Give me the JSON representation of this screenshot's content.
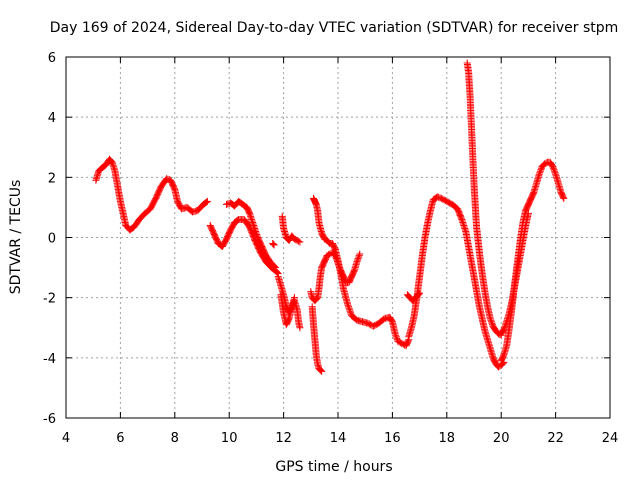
{
  "chart_data": {
    "type": "scatter",
    "title": "Day 169 of 2024, Sidereal Day-to-day VTEC variation (SDTVAR) for receiver stpm",
    "xlabel": "GPS time / hours",
    "ylabel": "SDTVAR / TECUs",
    "xlim": [
      4,
      24
    ],
    "ylim": [
      -6,
      6
    ],
    "xticks": [
      "4",
      "6",
      "8",
      "10",
      "12",
      "14",
      "16",
      "18",
      "20",
      "22",
      "24"
    ],
    "yticks": [
      "-6",
      "-4",
      "-2",
      "0",
      "2",
      "4",
      "6"
    ],
    "grid": true,
    "marker": "+",
    "color": "#ff0000",
    "series": [
      {
        "name": "seg1",
        "x": [
          5.1,
          5.2,
          5.3,
          5.45,
          5.6,
          5.7,
          5.8,
          5.9,
          6.0,
          6.1,
          6.2,
          6.35,
          6.5,
          6.7,
          6.9,
          7.1,
          7.3,
          7.5,
          7.7,
          7.85,
          8.0,
          8.1,
          8.25,
          8.45,
          8.65,
          8.85,
          9.05,
          9.2
        ],
        "y": [
          1.9,
          2.2,
          2.3,
          2.4,
          2.6,
          2.5,
          2.2,
          1.7,
          1.2,
          0.8,
          0.4,
          0.25,
          0.35,
          0.6,
          0.8,
          0.95,
          1.3,
          1.7,
          1.95,
          1.9,
          1.6,
          1.2,
          0.95,
          1.0,
          0.85,
          0.9,
          1.1,
          1.2
        ]
      },
      {
        "name": "seg2",
        "x": [
          9.3,
          9.45,
          9.6,
          9.75,
          9.9,
          10.05,
          10.2,
          10.35,
          10.55,
          10.75,
          10.95,
          11.15,
          11.35,
          11.55,
          11.7,
          11.8
        ],
        "y": [
          0.4,
          0.1,
          -0.2,
          -0.3,
          -0.05,
          0.25,
          0.5,
          0.6,
          0.6,
          0.35,
          -0.1,
          -0.5,
          -0.8,
          -1.0,
          -1.1,
          -1.2
        ]
      },
      {
        "name": "seg3",
        "x": [
          9.9,
          10.05,
          10.2,
          10.35,
          10.5,
          10.65,
          10.75,
          10.9,
          11.05,
          11.2,
          11.35,
          11.5,
          11.6,
          11.7
        ],
        "y": [
          1.1,
          1.15,
          1.05,
          1.2,
          1.1,
          1.0,
          0.8,
          0.4,
          0.0,
          -0.3,
          -0.6,
          -0.8,
          -0.9,
          -1.0
        ]
      },
      {
        "name": "seg4",
        "x": [
          11.8,
          11.9,
          12.0,
          12.1,
          12.2,
          12.3,
          12.4,
          12.5,
          12.55,
          12.6
        ],
        "y": [
          -1.3,
          -1.6,
          -1.9,
          -2.3,
          -2.5,
          -2.3,
          -2.1,
          -2.4,
          -2.8,
          -3.0
        ]
      },
      {
        "name": "seg5",
        "x": [
          11.9,
          12.0,
          12.1,
          12.2,
          12.3,
          12.4
        ],
        "y": [
          -1.9,
          -2.5,
          -2.9,
          -2.7,
          -2.3,
          -2.0
        ]
      },
      {
        "name": "seg6",
        "x": [
          11.95,
          12.0,
          12.1,
          12.2,
          12.3,
          12.4,
          12.5,
          12.6
        ],
        "y": [
          0.7,
          0.3,
          0.0,
          -0.1,
          0.05,
          -0.05,
          -0.1,
          -0.15
        ]
      },
      {
        "name": "seg7",
        "x": [
          11.6,
          11.65
        ],
        "y": [
          -0.2,
          -0.25
        ]
      },
      {
        "name": "seg8",
        "x": [
          13.05,
          13.1,
          13.15,
          13.2,
          13.25,
          13.3,
          13.35,
          13.4
        ],
        "y": [
          -2.3,
          -2.9,
          -3.4,
          -3.9,
          -4.2,
          -4.35,
          -4.4,
          -4.45
        ]
      },
      {
        "name": "seg9",
        "x": [
          13.0,
          13.05,
          13.15,
          13.25,
          13.3,
          13.35,
          13.4,
          13.5,
          13.6,
          13.7,
          13.8,
          13.9,
          14.0,
          14.1,
          14.2,
          14.3,
          14.4,
          14.5,
          14.6,
          14.7,
          14.8
        ],
        "y": [
          -1.8,
          -2.0,
          -2.1,
          -2.0,
          -1.7,
          -1.3,
          -1.0,
          -0.8,
          -0.6,
          -0.55,
          -0.5,
          -0.6,
          -0.85,
          -1.1,
          -1.3,
          -1.5,
          -1.5,
          -1.3,
          -1.1,
          -0.8,
          -0.55
        ]
      },
      {
        "name": "seg10",
        "x": [
          13.1,
          13.15,
          13.2,
          13.25,
          13.3,
          13.4,
          13.5,
          13.6,
          13.7,
          13.8,
          13.9,
          14.0,
          14.1,
          14.2,
          14.35,
          14.5,
          14.7,
          14.9,
          15.1,
          15.3,
          15.5,
          15.7,
          15.9,
          16.0,
          16.1,
          16.2,
          16.3,
          16.4,
          16.5,
          16.6
        ],
        "y": [
          1.3,
          1.2,
          1.1,
          0.9,
          0.5,
          0.15,
          -0.05,
          -0.1,
          -0.2,
          -0.2,
          -0.4,
          -0.75,
          -1.2,
          -1.7,
          -2.2,
          -2.6,
          -2.75,
          -2.8,
          -2.85,
          -2.95,
          -2.85,
          -2.7,
          -2.65,
          -2.8,
          -3.2,
          -3.45,
          -3.5,
          -3.55,
          -3.6,
          -3.4
        ]
      },
      {
        "name": "seg11",
        "x": [
          16.6,
          16.7,
          16.8,
          16.9,
          17.0,
          17.1,
          17.2,
          17.3,
          17.4,
          17.5,
          17.65,
          17.8,
          18.0,
          18.2,
          18.4,
          18.55,
          18.7,
          18.8,
          18.9,
          19.0,
          19.1,
          19.2,
          19.3,
          19.4,
          19.5,
          19.6,
          19.7,
          19.8,
          19.9,
          20.0,
          20.1
        ],
        "y": [
          -3.3,
          -3.0,
          -2.6,
          -2.0,
          -1.3,
          -0.6,
          0.0,
          0.5,
          0.9,
          1.25,
          1.35,
          1.3,
          1.2,
          1.1,
          0.95,
          0.6,
          0.2,
          -0.3,
          -0.8,
          -1.3,
          -1.8,
          -2.3,
          -2.7,
          -3.1,
          -3.4,
          -3.7,
          -4.0,
          -4.2,
          -4.3,
          -4.25,
          -4.15
        ]
      },
      {
        "name": "seg12",
        "x": [
          16.55,
          16.65,
          16.75,
          16.85,
          16.95,
          17.0
        ],
        "y": [
          -1.9,
          -2.0,
          -2.1,
          -2.0,
          -1.9,
          -1.85
        ]
      },
      {
        "name": "seg13",
        "x": [
          18.75,
          18.8,
          18.85,
          18.9,
          18.95,
          19.0,
          19.05,
          19.1,
          19.2,
          19.3,
          19.4,
          19.5,
          19.6,
          19.7,
          19.8,
          19.9,
          20.0
        ],
        "y": [
          5.8,
          5.5,
          4.8,
          3.8,
          2.8,
          1.8,
          1.0,
          0.3,
          -0.5,
          -1.2,
          -1.8,
          -2.3,
          -2.7,
          -2.95,
          -3.1,
          -3.2,
          -3.25
        ]
      },
      {
        "name": "seg14",
        "x": [
          20.0,
          20.1,
          20.2,
          20.3,
          20.4,
          20.5,
          20.6,
          20.7,
          20.8,
          20.9,
          21.0,
          21.1,
          21.2,
          21.3,
          21.4,
          21.5,
          21.6,
          21.7,
          21.8,
          21.9,
          22.0,
          22.1,
          22.2,
          22.3
        ],
        "y": [
          -4.1,
          -3.9,
          -3.6,
          -3.0,
          -2.3,
          -1.5,
          -0.8,
          -0.1,
          0.5,
          0.9,
          1.1,
          1.3,
          1.5,
          1.8,
          2.1,
          2.35,
          2.45,
          2.5,
          2.5,
          2.35,
          2.1,
          1.8,
          1.5,
          1.3
        ]
      },
      {
        "name": "seg15",
        "x": [
          20.0,
          20.1,
          20.2,
          20.3,
          20.4,
          20.5,
          20.6,
          20.7,
          20.8,
          20.9,
          21.0
        ],
        "y": [
          -3.2,
          -3.05,
          -2.8,
          -2.5,
          -2.1,
          -1.6,
          -1.1,
          -0.6,
          -0.1,
          0.4,
          0.8
        ]
      }
    ]
  }
}
